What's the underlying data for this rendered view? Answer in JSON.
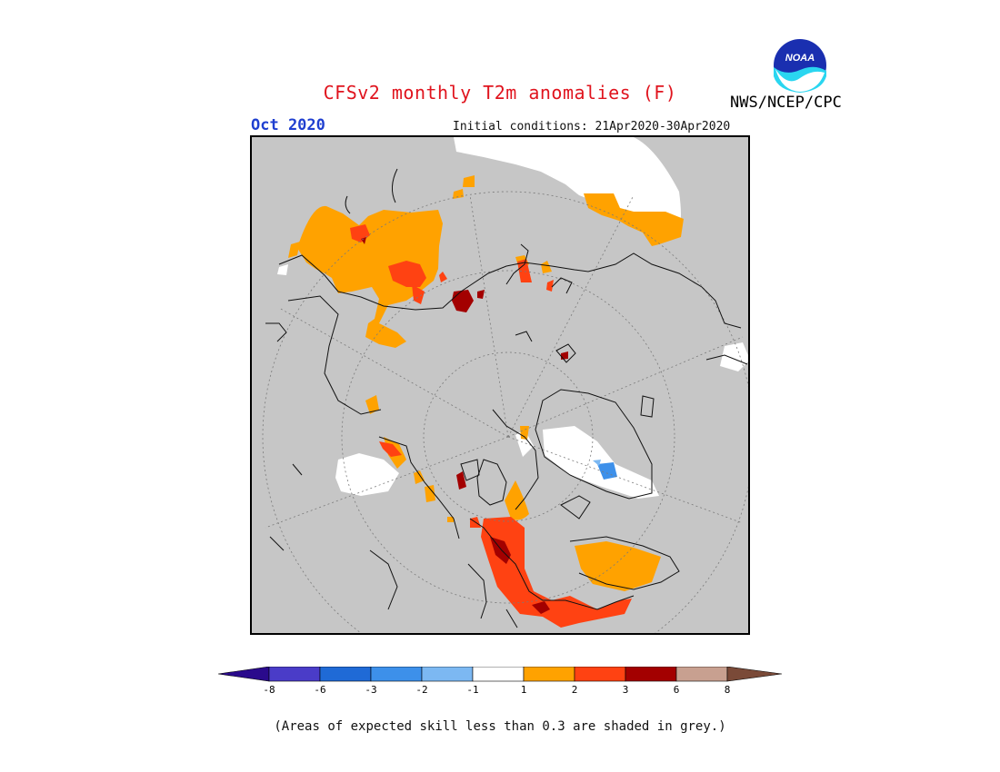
{
  "header": {
    "title": "CFSv2 monthly T2m anomalies (F)",
    "month": "Oct 2020",
    "initial_conditions": "Initial conditions: 21Apr2020-30Apr2020",
    "agency": "NWS/NCEP/CPC",
    "logo_text": "NOAA"
  },
  "colors": {
    "grey_low_skill": "#c6c6c6",
    "coast": "#111111",
    "graticule": "#7a7a7a"
  },
  "legend": {
    "bins": [
      {
        "label": "<-8",
        "color": "#2a0a8c"
      },
      {
        "label": "-8 to -6",
        "color": "#4a3cc8"
      },
      {
        "label": "-6 to -3",
        "color": "#1f6ad6"
      },
      {
        "label": "-3 to -2",
        "color": "#3d90ea"
      },
      {
        "label": "-2 to -1",
        "color": "#7cb8f2"
      },
      {
        "label": "-1 to 1",
        "color": "#ffffff"
      },
      {
        "label": "1 to 2",
        "color": "#ffa200"
      },
      {
        "label": "2 to 3",
        "color": "#ff4212"
      },
      {
        "label": "3 to 6",
        "color": "#a30000"
      },
      {
        "label": "6 to 8",
        "color": "#c8a090"
      },
      {
        "label": ">8",
        "color": "#7a4a38"
      }
    ],
    "tick_labels": [
      "-8",
      "-6",
      "-3",
      "-2",
      "-1",
      "1",
      "2",
      "3",
      "6",
      "8"
    ]
  },
  "footnote": "(Areas of expected skill less than 0.3 are shaded in grey.)"
}
